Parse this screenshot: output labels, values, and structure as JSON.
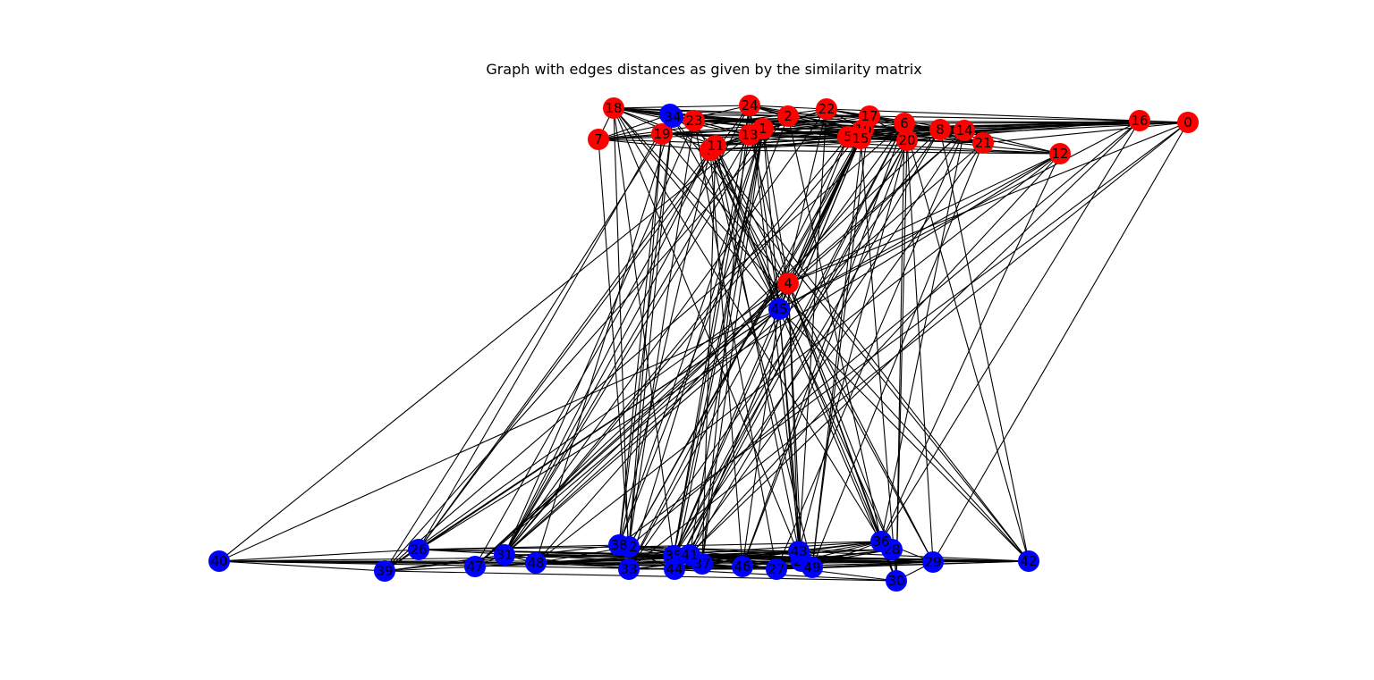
{
  "figure": {
    "title": "Graph with edges distances as given by the similarity matrix"
  },
  "colors": {
    "group_a": "#ff0000",
    "group_b": "#0000ff",
    "edge": "#000000",
    "background": "#ffffff"
  },
  "graph": {
    "nodes": [
      {
        "id": "0",
        "group": "group_a"
      },
      {
        "id": "1",
        "group": "group_a"
      },
      {
        "id": "2",
        "group": "group_a"
      },
      {
        "id": "3",
        "group": "group_b"
      },
      {
        "id": "4",
        "group": "group_a"
      },
      {
        "id": "5",
        "group": "group_a"
      },
      {
        "id": "6",
        "group": "group_a"
      },
      {
        "id": "7",
        "group": "group_a"
      },
      {
        "id": "8",
        "group": "group_a"
      },
      {
        "id": "9",
        "group": "group_a"
      },
      {
        "id": "10",
        "group": "group_a"
      },
      {
        "id": "11",
        "group": "group_a"
      },
      {
        "id": "12",
        "group": "group_a"
      },
      {
        "id": "13",
        "group": "group_a"
      },
      {
        "id": "14",
        "group": "group_a"
      },
      {
        "id": "15",
        "group": "group_a"
      },
      {
        "id": "16",
        "group": "group_a"
      },
      {
        "id": "17",
        "group": "group_a"
      },
      {
        "id": "18",
        "group": "group_a"
      },
      {
        "id": "19",
        "group": "group_a"
      },
      {
        "id": "20",
        "group": "group_a"
      },
      {
        "id": "21",
        "group": "group_a"
      },
      {
        "id": "22",
        "group": "group_a"
      },
      {
        "id": "23",
        "group": "group_a"
      },
      {
        "id": "24",
        "group": "group_a"
      },
      {
        "id": "25",
        "group": "group_b"
      },
      {
        "id": "26",
        "group": "group_b"
      },
      {
        "id": "27",
        "group": "group_b"
      },
      {
        "id": "28",
        "group": "group_b"
      },
      {
        "id": "29",
        "group": "group_b"
      },
      {
        "id": "30",
        "group": "group_b"
      },
      {
        "id": "31",
        "group": "group_b"
      },
      {
        "id": "32",
        "group": "group_b"
      },
      {
        "id": "33",
        "group": "group_b"
      },
      {
        "id": "34",
        "group": "group_b"
      },
      {
        "id": "35",
        "group": "group_b"
      },
      {
        "id": "36",
        "group": "group_b"
      },
      {
        "id": "37",
        "group": "group_b"
      },
      {
        "id": "38",
        "group": "group_b"
      },
      {
        "id": "39",
        "group": "group_b"
      },
      {
        "id": "40",
        "group": "group_b"
      },
      {
        "id": "41",
        "group": "group_b"
      },
      {
        "id": "42",
        "group": "group_b"
      },
      {
        "id": "43",
        "group": "group_b"
      },
      {
        "id": "44",
        "group": "group_b"
      },
      {
        "id": "45",
        "group": "group_b"
      },
      {
        "id": "46",
        "group": "group_b"
      },
      {
        "id": "47",
        "group": "group_b"
      },
      {
        "id": "48",
        "group": "group_b"
      },
      {
        "id": "49",
        "group": "group_b"
      }
    ]
  }
}
